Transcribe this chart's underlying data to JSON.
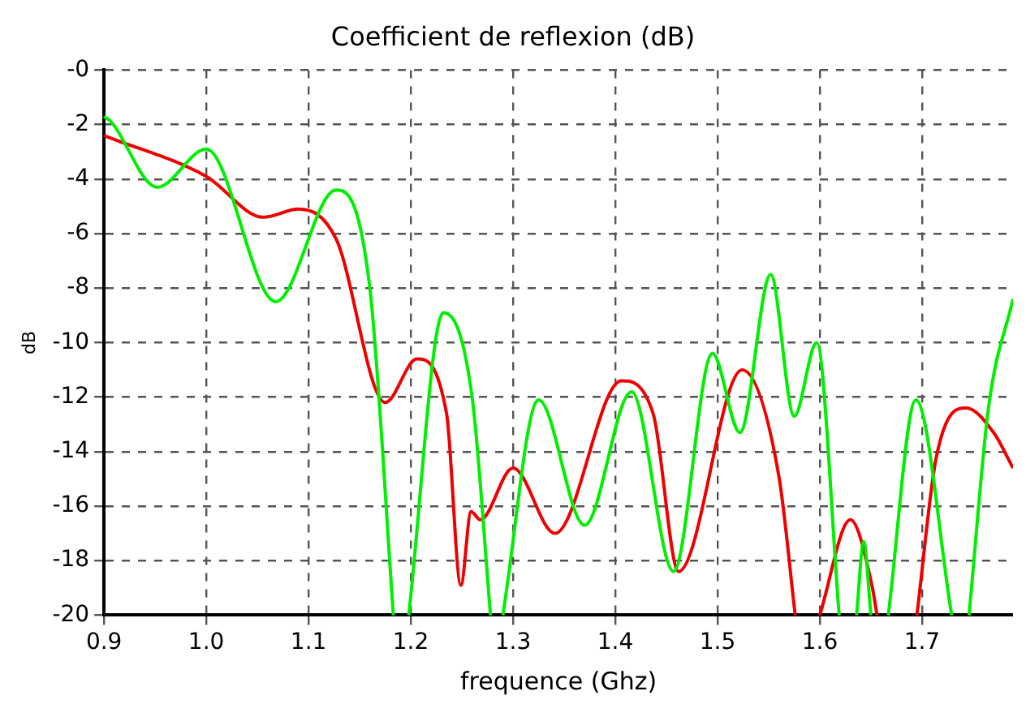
{
  "chart_data": {
    "type": "line",
    "title": "Coefficient de reflexion (dB)",
    "xlabel": "frequence (Ghz)",
    "ylabel": "dB",
    "xlim": [
      0.9,
      1.789
    ],
    "ylim": [
      -20,
      0
    ],
    "xticks": [
      {
        "value": 0.9,
        "label": "0.9"
      },
      {
        "value": 1.0,
        "label": "1.0"
      },
      {
        "value": 1.1,
        "label": "1.1"
      },
      {
        "value": 1.2,
        "label": "1.2"
      },
      {
        "value": 1.3,
        "label": "1.3"
      },
      {
        "value": 1.4,
        "label": "1.4"
      },
      {
        "value": 1.5,
        "label": "1.5"
      },
      {
        "value": 1.6,
        "label": "1.6"
      },
      {
        "value": 1.7,
        "label": "1.7"
      }
    ],
    "yticks": [
      {
        "value": 0,
        "label": "-0"
      },
      -2,
      -4,
      -6,
      -8,
      -10,
      -12,
      -14,
      -16,
      -18,
      -20
    ],
    "grid": true,
    "line_style": "solid",
    "marker": "none",
    "series": [
      {
        "color": "#00ee00",
        "x": [
          0.9,
          0.907,
          0.952,
          1.0,
          1.068,
          1.127,
          1.16,
          1.183,
          1.19,
          1.198,
          1.232,
          1.26,
          1.278,
          1.284,
          1.29,
          1.325,
          1.37,
          1.416,
          1.457,
          1.495,
          1.522,
          1.552,
          1.575,
          1.597,
          1.619,
          1.628,
          1.636,
          1.643,
          1.65,
          1.66,
          1.667,
          1.694,
          1.729,
          1.738,
          1.746,
          1.765,
          1.789
        ],
        "values": [
          -1.7,
          -1.9,
          -4.3,
          -2.9,
          -8.5,
          -4.4,
          -8,
          -20,
          null,
          -20,
          -8.9,
          -12,
          -20,
          null,
          -20,
          -12.1,
          -16.7,
          -11.8,
          -18.4,
          -10.4,
          -13.3,
          -7.5,
          -12.7,
          -10.0,
          -20,
          null,
          -20,
          -17.3,
          -20,
          null,
          -20,
          -12.1,
          -20,
          null,
          -20,
          -12.4,
          -8.4
        ]
      },
      {
        "color": "#ee0000",
        "x": [
          0.9,
          1.0,
          1.056,
          1.09,
          1.127,
          1.175,
          1.206,
          1.235,
          1.249,
          1.259,
          1.268,
          1.3,
          1.341,
          1.406,
          1.437,
          1.462,
          1.524,
          1.56,
          1.576,
          1.588,
          1.6,
          1.63,
          1.651,
          1.656,
          1.68,
          1.695,
          1.714,
          1.743,
          1.77,
          1.789
        ],
        "values": [
          -2.4,
          -3.9,
          -5.4,
          -5.1,
          -6.2,
          -12.2,
          -10.6,
          -12.6,
          -18.9,
          -16.2,
          -16.5,
          -14.6,
          -17.0,
          -11.4,
          -12.6,
          -18.4,
          -11.0,
          -14.9,
          -20,
          null,
          -20,
          -16.5,
          -18.9,
          -20,
          null,
          -20,
          -14.2,
          -12.4,
          -13.3,
          -14.6
        ]
      }
    ]
  }
}
